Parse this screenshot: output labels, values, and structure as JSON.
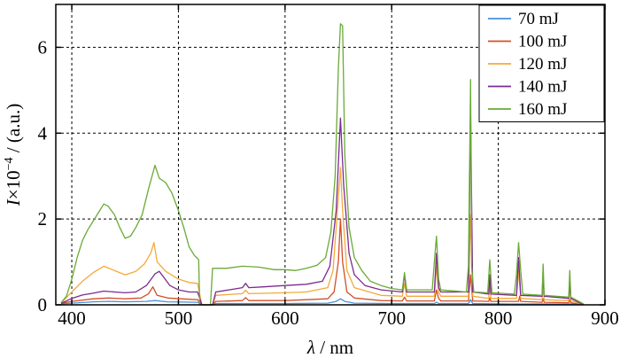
{
  "chart_data": {
    "type": "line",
    "title": "",
    "xlabel_var": "λ",
    "xlabel_unit": " / nm",
    "ylabel_var": "I",
    "ylabel_mid": "×10",
    "ylabel_exp": "−4",
    "ylabel_unit": " / (a.u.)",
    "xlim": [
      385,
      900
    ],
    "ylim": [
      0,
      7
    ],
    "xticks": [
      400,
      500,
      600,
      700,
      800,
      900
    ],
    "yticks": [
      0,
      2,
      4,
      6
    ],
    "grid": true,
    "legend_position": "top-right",
    "series": [
      {
        "name": "70 mJ",
        "color": "#4a90d9",
        "points": [
          [
            390,
            0.02
          ],
          [
            400,
            0.04
          ],
          [
            420,
            0.07
          ],
          [
            435,
            0.08
          ],
          [
            450,
            0.07
          ],
          [
            470,
            0.08
          ],
          [
            478,
            0.1
          ],
          [
            490,
            0.07
          ],
          [
            518,
            0.06
          ],
          [
            522,
            0.0
          ],
          [
            532,
            0.0
          ],
          [
            535,
            0.03
          ],
          [
            600,
            0.03
          ],
          [
            640,
            0.04
          ],
          [
            648,
            0.08
          ],
          [
            652,
            0.14
          ],
          [
            656,
            0.08
          ],
          [
            665,
            0.04
          ],
          [
            700,
            0.03
          ],
          [
            740,
            0.03
          ],
          [
            742,
            0.06
          ],
          [
            744,
            0.03
          ],
          [
            772,
            0.03
          ],
          [
            774,
            0.12
          ],
          [
            776,
            0.03
          ],
          [
            810,
            0.02
          ],
          [
            870,
            0.02
          ],
          [
            880,
            0.0
          ]
        ]
      },
      {
        "name": "100 mJ",
        "color": "#d0502a",
        "points": [
          [
            390,
            0.03
          ],
          [
            400,
            0.08
          ],
          [
            420,
            0.14
          ],
          [
            435,
            0.16
          ],
          [
            450,
            0.14
          ],
          [
            465,
            0.16
          ],
          [
            472,
            0.26
          ],
          [
            476,
            0.42
          ],
          [
            480,
            0.22
          ],
          [
            490,
            0.16
          ],
          [
            510,
            0.13
          ],
          [
            518,
            0.12
          ],
          [
            522,
            0.0
          ],
          [
            532,
            0.0
          ],
          [
            535,
            0.08
          ],
          [
            560,
            0.1
          ],
          [
            563,
            0.17
          ],
          [
            566,
            0.1
          ],
          [
            600,
            0.1
          ],
          [
            620,
            0.12
          ],
          [
            640,
            0.14
          ],
          [
            646,
            0.3
          ],
          [
            650,
            1.0
          ],
          [
            652,
            2.0
          ],
          [
            654,
            1.0
          ],
          [
            658,
            0.3
          ],
          [
            665,
            0.16
          ],
          [
            690,
            0.1
          ],
          [
            710,
            0.09
          ],
          [
            712,
            0.18
          ],
          [
            714,
            0.09
          ],
          [
            740,
            0.09
          ],
          [
            742,
            0.35
          ],
          [
            744,
            0.15
          ],
          [
            746,
            0.09
          ],
          [
            772,
            0.09
          ],
          [
            774,
            0.7
          ],
          [
            776,
            0.09
          ],
          [
            791,
            0.08
          ],
          [
            792,
            0.16
          ],
          [
            793,
            0.08
          ],
          [
            819,
            0.08
          ],
          [
            820,
            0.2
          ],
          [
            821,
            0.08
          ],
          [
            841,
            0.06
          ],
          [
            842,
            0.14
          ],
          [
            843,
            0.06
          ],
          [
            866,
            0.05
          ],
          [
            867,
            0.12
          ],
          [
            868,
            0.05
          ],
          [
            880,
            0.0
          ]
        ]
      },
      {
        "name": "120 mJ",
        "color": "#f4a93b",
        "points": [
          [
            390,
            0.04
          ],
          [
            400,
            0.3
          ],
          [
            410,
            0.55
          ],
          [
            420,
            0.75
          ],
          [
            430,
            0.9
          ],
          [
            438,
            0.82
          ],
          [
            450,
            0.7
          ],
          [
            460,
            0.78
          ],
          [
            468,
            0.95
          ],
          [
            474,
            1.2
          ],
          [
            477,
            1.45
          ],
          [
            480,
            1.0
          ],
          [
            488,
            0.78
          ],
          [
            500,
            0.6
          ],
          [
            510,
            0.52
          ],
          [
            518,
            0.5
          ],
          [
            522,
            0.0
          ],
          [
            532,
            0.0
          ],
          [
            535,
            0.22
          ],
          [
            560,
            0.26
          ],
          [
            563,
            0.34
          ],
          [
            566,
            0.26
          ],
          [
            600,
            0.28
          ],
          [
            620,
            0.3
          ],
          [
            640,
            0.4
          ],
          [
            645,
            0.8
          ],
          [
            650,
            2.5
          ],
          [
            652,
            3.2
          ],
          [
            654,
            2.2
          ],
          [
            658,
            0.8
          ],
          [
            665,
            0.4
          ],
          [
            690,
            0.22
          ],
          [
            710,
            0.2
          ],
          [
            712,
            0.5
          ],
          [
            714,
            0.2
          ],
          [
            740,
            0.2
          ],
          [
            742,
            0.9
          ],
          [
            744,
            0.3
          ],
          [
            746,
            0.2
          ],
          [
            772,
            0.2
          ],
          [
            774,
            2.1
          ],
          [
            776,
            0.2
          ],
          [
            791,
            0.15
          ],
          [
            792,
            0.5
          ],
          [
            793,
            0.15
          ],
          [
            817,
            0.15
          ],
          [
            819,
            0.8
          ],
          [
            821,
            0.15
          ],
          [
            841,
            0.12
          ],
          [
            842,
            0.45
          ],
          [
            843,
            0.12
          ],
          [
            866,
            0.1
          ],
          [
            867,
            0.4
          ],
          [
            868,
            0.1
          ],
          [
            880,
            0.0
          ]
        ]
      },
      {
        "name": "140 mJ",
        "color": "#7b2b8e",
        "points": [
          [
            390,
            0.03
          ],
          [
            400,
            0.15
          ],
          [
            410,
            0.23
          ],
          [
            420,
            0.27
          ],
          [
            430,
            0.32
          ],
          [
            440,
            0.3
          ],
          [
            450,
            0.28
          ],
          [
            460,
            0.3
          ],
          [
            470,
            0.45
          ],
          [
            478,
            0.72
          ],
          [
            482,
            0.78
          ],
          [
            486,
            0.65
          ],
          [
            492,
            0.45
          ],
          [
            500,
            0.35
          ],
          [
            510,
            0.3
          ],
          [
            518,
            0.3
          ],
          [
            522,
            0.0
          ],
          [
            532,
            0.0
          ],
          [
            535,
            0.3
          ],
          [
            550,
            0.36
          ],
          [
            560,
            0.4
          ],
          [
            563,
            0.5
          ],
          [
            566,
            0.4
          ],
          [
            580,
            0.42
          ],
          [
            600,
            0.45
          ],
          [
            620,
            0.48
          ],
          [
            635,
            0.55
          ],
          [
            642,
            0.9
          ],
          [
            648,
            2.2
          ],
          [
            652,
            4.35
          ],
          [
            655,
            2.8
          ],
          [
            660,
            1.2
          ],
          [
            665,
            0.7
          ],
          [
            675,
            0.45
          ],
          [
            690,
            0.35
          ],
          [
            710,
            0.3
          ],
          [
            712,
            0.7
          ],
          [
            714,
            0.3
          ],
          [
            740,
            0.3
          ],
          [
            742,
            1.2
          ],
          [
            744,
            0.4
          ],
          [
            746,
            0.3
          ],
          [
            772,
            0.3
          ],
          [
            774,
            4.5
          ],
          [
            776,
            0.3
          ],
          [
            791,
            0.25
          ],
          [
            792,
            0.7
          ],
          [
            793,
            0.25
          ],
          [
            817,
            0.22
          ],
          [
            819,
            1.1
          ],
          [
            821,
            0.22
          ],
          [
            841,
            0.2
          ],
          [
            842,
            0.7
          ],
          [
            843,
            0.2
          ],
          [
            866,
            0.15
          ],
          [
            867,
            0.55
          ],
          [
            868,
            0.15
          ],
          [
            880,
            0.0
          ]
        ]
      },
      {
        "name": "160 mJ",
        "color": "#6aaa35",
        "points": [
          [
            390,
            0.05
          ],
          [
            395,
            0.2
          ],
          [
            400,
            0.6
          ],
          [
            405,
            1.1
          ],
          [
            410,
            1.5
          ],
          [
            415,
            1.75
          ],
          [
            420,
            1.95
          ],
          [
            425,
            2.15
          ],
          [
            430,
            2.35
          ],
          [
            434,
            2.3
          ],
          [
            440,
            2.1
          ],
          [
            445,
            1.8
          ],
          [
            450,
            1.55
          ],
          [
            455,
            1.6
          ],
          [
            460,
            1.8
          ],
          [
            466,
            2.1
          ],
          [
            472,
            2.7
          ],
          [
            478,
            3.25
          ],
          [
            482,
            2.95
          ],
          [
            488,
            2.85
          ],
          [
            494,
            2.6
          ],
          [
            500,
            2.2
          ],
          [
            505,
            1.8
          ],
          [
            510,
            1.35
          ],
          [
            515,
            1.15
          ],
          [
            519,
            1.05
          ],
          [
            520,
            0.0
          ],
          [
            530,
            0.0
          ],
          [
            532,
            0.85
          ],
          [
            545,
            0.85
          ],
          [
            560,
            0.9
          ],
          [
            575,
            0.88
          ],
          [
            590,
            0.82
          ],
          [
            600,
            0.82
          ],
          [
            610,
            0.8
          ],
          [
            620,
            0.85
          ],
          [
            630,
            0.92
          ],
          [
            638,
            1.1
          ],
          [
            643,
            1.7
          ],
          [
            647,
            3.0
          ],
          [
            650,
            5.5
          ],
          [
            652,
            6.55
          ],
          [
            654,
            6.5
          ],
          [
            656,
            3.5
          ],
          [
            660,
            1.8
          ],
          [
            665,
            1.1
          ],
          [
            672,
            0.8
          ],
          [
            680,
            0.55
          ],
          [
            690,
            0.45
          ],
          [
            700,
            0.38
          ],
          [
            710,
            0.35
          ],
          [
            712,
            0.75
          ],
          [
            714,
            0.35
          ],
          [
            738,
            0.35
          ],
          [
            740,
            1.0
          ],
          [
            742,
            1.6
          ],
          [
            744,
            0.6
          ],
          [
            746,
            0.35
          ],
          [
            770,
            0.3
          ],
          [
            772,
            0.9
          ],
          [
            774,
            5.25
          ],
          [
            775,
            0.9
          ],
          [
            777,
            0.3
          ],
          [
            790,
            0.28
          ],
          [
            792,
            1.05
          ],
          [
            794,
            0.28
          ],
          [
            815,
            0.25
          ],
          [
            817,
            0.7
          ],
          [
            819,
            1.45
          ],
          [
            821,
            0.8
          ],
          [
            823,
            0.25
          ],
          [
            841,
            0.22
          ],
          [
            842,
            0.95
          ],
          [
            843,
            0.22
          ],
          [
            866,
            0.18
          ],
          [
            867,
            0.8
          ],
          [
            868,
            0.18
          ],
          [
            880,
            0.02
          ]
        ]
      }
    ]
  }
}
